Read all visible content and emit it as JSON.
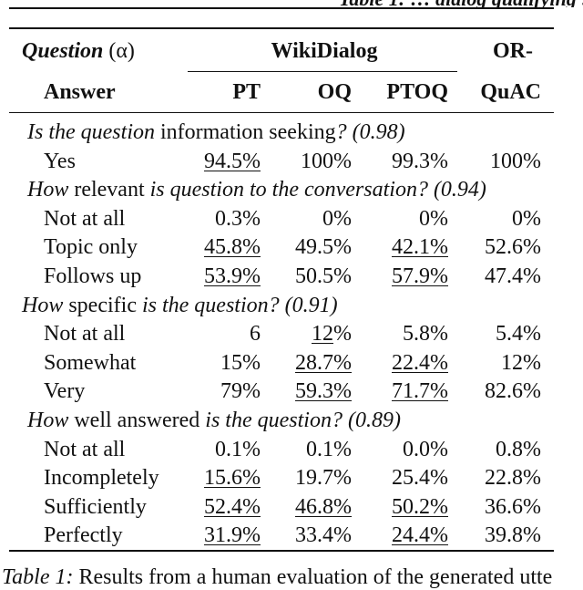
{
  "top_fragment": "Table 1: … dialog qualifying …",
  "header": {
    "question_label": "Question",
    "alpha_label": "(α)",
    "answer_label": "Answer",
    "wikidialog_label": "WikiDialog",
    "orquac_line1": "OR-",
    "orquac_line2": "QuAC",
    "col_pt": "PT",
    "col_oq": "OQ",
    "col_ptoq": "PTOQ"
  },
  "sections": [
    {
      "parts": [
        {
          "text": "Is the question ",
          "italic": true
        },
        {
          "text": "information seeking",
          "italic": false
        },
        {
          "text": "? (0.98)",
          "italic": true
        }
      ],
      "rows": [
        {
          "label": "Yes",
          "pt": "94.5%",
          "oq": "100%",
          "ptoq": "99.3%",
          "orquac": "100%",
          "u": [
            true,
            false,
            false,
            false
          ]
        }
      ]
    },
    {
      "parts": [
        {
          "text": "How ",
          "italic": true
        },
        {
          "text": "relevant",
          "italic": false
        },
        {
          "text": " is question to the conversation? (0.94)",
          "italic": true
        }
      ],
      "rows": [
        {
          "label": "Not at all",
          "pt": "0.3%",
          "oq": "0%",
          "ptoq": "0%",
          "orquac": "0%",
          "u": [
            false,
            false,
            false,
            false
          ]
        },
        {
          "label": "Topic only",
          "pt": "45.8%",
          "oq": "49.5%",
          "ptoq": "42.1%",
          "orquac": "52.6%",
          "u": [
            true,
            false,
            true,
            false
          ]
        },
        {
          "label": "Follows up",
          "pt": "53.9%",
          "oq": "50.5%",
          "ptoq": "57.9%",
          "orquac": "47.4%",
          "u": [
            true,
            false,
            true,
            false
          ]
        }
      ]
    },
    {
      "parts": [
        {
          "text": "How ",
          "italic": true
        },
        {
          "text": "specific",
          "italic": false
        },
        {
          "text": " is the question? (0.91)",
          "italic": true
        }
      ],
      "rows": [
        {
          "label": "Not at all",
          "pt": "6",
          "oq": "12%",
          "ptoq": "5.8%",
          "orquac": "5.4%",
          "u": [
            false,
            "partial",
            false,
            false
          ]
        },
        {
          "label": "Somewhat",
          "pt": "15%",
          "oq": "28.7%",
          "ptoq": "22.4%",
          "orquac": "12%",
          "u": [
            false,
            true,
            true,
            false
          ]
        },
        {
          "label": "Very",
          "pt": "79%",
          "oq": "59.3%",
          "ptoq": "71.7%",
          "orquac": "82.6%",
          "u": [
            false,
            true,
            true,
            false
          ]
        }
      ]
    },
    {
      "parts": [
        {
          "text": "How ",
          "italic": true
        },
        {
          "text": "well answered",
          "italic": false
        },
        {
          "text": " is the question? (0.89)",
          "italic": true
        }
      ],
      "rows": [
        {
          "label": "Not at all",
          "pt": "0.1%",
          "oq": "0.1%",
          "ptoq": "0.0%",
          "orquac": "0.8%",
          "u": [
            false,
            false,
            false,
            false
          ]
        },
        {
          "label": "Incompletely",
          "pt": "15.6%",
          "oq": "19.7%",
          "ptoq": "25.4%",
          "orquac": "22.8%",
          "u": [
            true,
            false,
            false,
            false
          ]
        },
        {
          "label": "Sufficiently",
          "pt": "52.4%",
          "oq": "46.8%",
          "ptoq": "50.2%",
          "orquac": "36.6%",
          "u": [
            true,
            true,
            true,
            false
          ]
        },
        {
          "label": "Perfectly",
          "pt": "31.9%",
          "oq": "33.4%",
          "ptoq": "24.4%",
          "orquac": "39.8%",
          "u": [
            true,
            false,
            true,
            false
          ]
        }
      ]
    }
  ],
  "caption": {
    "label": "Table 1:",
    "text": " Results from a human evaluation of the generated utte"
  }
}
